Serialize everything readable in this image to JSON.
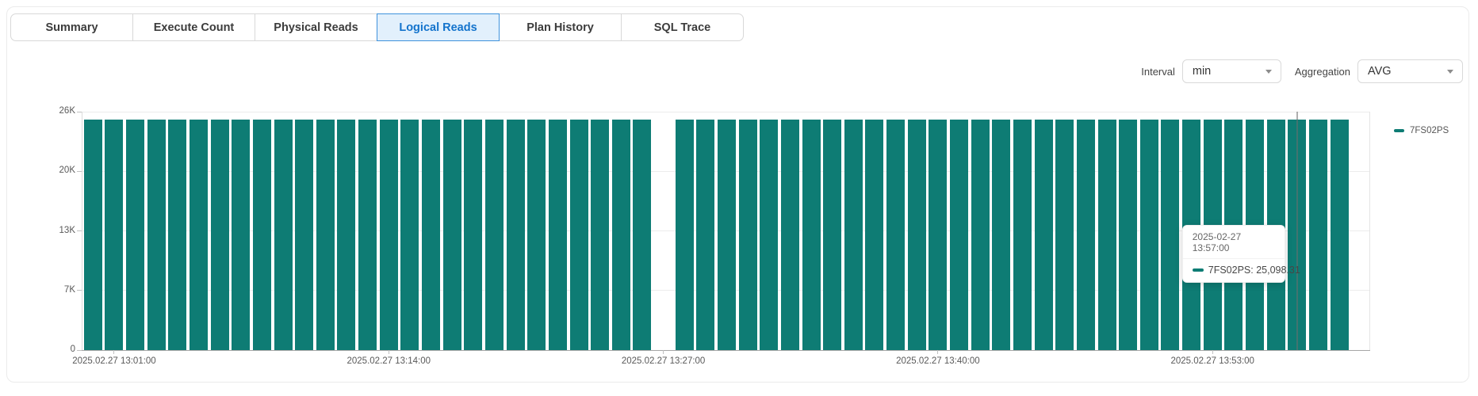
{
  "tabs": {
    "items": [
      {
        "label": "Summary",
        "active": false
      },
      {
        "label": "Execute Count",
        "active": false
      },
      {
        "label": "Physical Reads",
        "active": false
      },
      {
        "label": "Logical Reads",
        "active": true
      },
      {
        "label": "Plan History",
        "active": false
      },
      {
        "label": "SQL Trace",
        "active": false
      }
    ]
  },
  "controls": {
    "interval_label": "Interval",
    "interval_value": "min",
    "aggregation_label": "Aggregation",
    "aggregation_value": "AVG"
  },
  "legend": {
    "label": "7FS02PS"
  },
  "tooltip": {
    "title": "2025-02-27 13:57:00",
    "series": "7FS02PS",
    "value": "25,098.31"
  },
  "colors": {
    "bar": "#0e7c74",
    "active_tab_text": "#1373cc",
    "active_tab_bg": "#e2f0fc"
  },
  "chart_data": {
    "type": "bar",
    "title": "",
    "xlabel": "",
    "ylabel": "",
    "legend_position": "right",
    "grid": true,
    "y_axis": {
      "min": 0,
      "max": 26000,
      "ticks": [
        {
          "value": 0,
          "label": "0"
        },
        {
          "value": 6500,
          "label": "7K"
        },
        {
          "value": 13000,
          "label": "13K"
        },
        {
          "value": 19500,
          "label": "20K"
        },
        {
          "value": 26000,
          "label": "26K"
        }
      ]
    },
    "x_axis": {
      "ticks": [
        {
          "index": 1,
          "label": "2025.02.27 13:01:00"
        },
        {
          "index": 14,
          "label": "2025.02.27 13:14:00"
        },
        {
          "index": 27,
          "label": "2025.02.27 13:27:00"
        },
        {
          "index": 40,
          "label": "2025.02.27 13:40:00"
        },
        {
          "index": 53,
          "label": "2025.02.27 13:53:00"
        }
      ]
    },
    "categories": [
      "13:00",
      "13:01",
      "13:02",
      "13:03",
      "13:04",
      "13:05",
      "13:06",
      "13:07",
      "13:08",
      "13:09",
      "13:10",
      "13:11",
      "13:12",
      "13:13",
      "13:14",
      "13:15",
      "13:16",
      "13:17",
      "13:18",
      "13:19",
      "13:20",
      "13:21",
      "13:22",
      "13:23",
      "13:24",
      "13:25",
      "13:26",
      "13:27",
      "13:28",
      "13:29",
      "13:30",
      "13:31",
      "13:32",
      "13:33",
      "13:34",
      "13:35",
      "13:36",
      "13:37",
      "13:38",
      "13:39",
      "13:40",
      "13:41",
      "13:42",
      "13:43",
      "13:44",
      "13:45",
      "13:46",
      "13:47",
      "13:48",
      "13:49",
      "13:50",
      "13:51",
      "13:52",
      "13:53",
      "13:54",
      "13:55",
      "13:56",
      "13:57",
      "13:58",
      "13:59",
      "14:00"
    ],
    "series": [
      {
        "name": "7FS02PS",
        "color": "#0e7c74",
        "values": [
          25098.31,
          25098.31,
          25098.31,
          25098.31,
          25098.31,
          25098.31,
          25098.31,
          25098.31,
          25098.31,
          25098.31,
          25098.31,
          25098.31,
          25098.31,
          25098.31,
          25098.31,
          25098.31,
          25098.31,
          25098.31,
          25098.31,
          25098.31,
          25098.31,
          25098.31,
          25098.31,
          25098.31,
          25098.31,
          25098.31,
          25098.31,
          null,
          25098.31,
          25098.31,
          25098.31,
          25098.31,
          25098.31,
          25098.31,
          25098.31,
          25098.31,
          25098.31,
          25098.31,
          25098.31,
          25098.31,
          25098.31,
          25098.31,
          25098.31,
          25098.31,
          25098.31,
          25098.31,
          25098.31,
          25098.31,
          25098.31,
          25098.31,
          25098.31,
          25098.31,
          25098.31,
          25098.31,
          25098.31,
          25098.31,
          25098.31,
          25098.31,
          25098.31,
          25098.31,
          null
        ]
      }
    ],
    "hover": {
      "index": 57,
      "value": 25098.31
    }
  }
}
